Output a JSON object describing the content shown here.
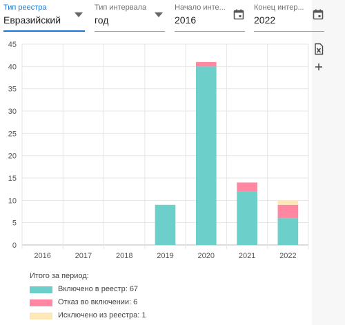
{
  "filters": {
    "registry_type": {
      "label": "Тип реестра",
      "value": "Евразийский"
    },
    "interval_type": {
      "label": "Тип интервала",
      "value": "год"
    },
    "start": {
      "label": "Начало инте...",
      "value": "2016"
    },
    "end": {
      "label": "Конец интер...",
      "value": "2022"
    }
  },
  "toolbar": {
    "excel_icon": "excel-export-icon",
    "add_icon": "plus-icon"
  },
  "colors": {
    "included": "#6ccfca",
    "refused": "#ff87a1",
    "excluded": "#ffe8b8",
    "accent": "#1976d2"
  },
  "chart_data": {
    "type": "bar",
    "stacked": true,
    "categories": [
      "2016",
      "2017",
      "2018",
      "2019",
      "2020",
      "2021",
      "2022"
    ],
    "series": [
      {
        "name": "Включено в реестр: 67",
        "values": [
          0,
          0,
          0,
          9,
          40,
          12,
          6
        ],
        "color": "#6ccfca"
      },
      {
        "name": "Отказ во включении: 6",
        "values": [
          0,
          0,
          0,
          0,
          1,
          2,
          3
        ],
        "color": "#ff87a1"
      },
      {
        "name": "Исключено из реестра: 1",
        "values": [
          0,
          0,
          0,
          0,
          0,
          0,
          1
        ],
        "color": "#ffe8b8"
      }
    ],
    "ylim": [
      0,
      45
    ],
    "yticks": [
      "0",
      "5",
      "10",
      "15",
      "20",
      "25",
      "30",
      "35",
      "40",
      "45"
    ],
    "grid": true,
    "title": "",
    "xlabel": "",
    "ylabel": "",
    "legend": {
      "title": "Итого за период:",
      "placement": "bottom-left"
    }
  }
}
